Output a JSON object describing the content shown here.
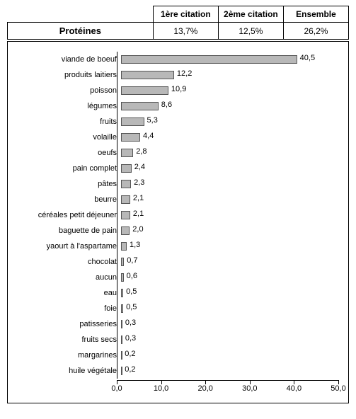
{
  "header": {
    "columns": [
      "1ère citation",
      "2ème citation",
      "Ensemble"
    ],
    "row_label": "Protéines",
    "values": [
      "13,7%",
      "12,5%",
      "26,2%"
    ]
  },
  "chart": {
    "type": "bar-horizontal",
    "xlim": [
      0.0,
      50.0
    ],
    "xtick_step": 10.0,
    "xticks": [
      "0,0",
      "10,0",
      "20,0",
      "30,0",
      "40,0",
      "50,0"
    ],
    "bar_fill": "#b8b8b8",
    "bar_border": "#555555",
    "background": "#ffffff",
    "label_fontsize": 11,
    "value_fontsize": 11,
    "items": [
      {
        "label": "viande de boeuf",
        "value": 40.5,
        "text": "40,5"
      },
      {
        "label": "produits laitiers",
        "value": 12.2,
        "text": "12,2"
      },
      {
        "label": "poisson",
        "value": 10.9,
        "text": "10,9"
      },
      {
        "label": "légumes",
        "value": 8.6,
        "text": "8,6"
      },
      {
        "label": "fruits",
        "value": 5.3,
        "text": "5,3"
      },
      {
        "label": "volaille",
        "value": 4.4,
        "text": "4,4"
      },
      {
        "label": "oeufs",
        "value": 2.8,
        "text": "2,8"
      },
      {
        "label": "pain complet",
        "value": 2.4,
        "text": "2,4"
      },
      {
        "label": "pâtes",
        "value": 2.3,
        "text": "2,3"
      },
      {
        "label": "beurre",
        "value": 2.1,
        "text": "2,1"
      },
      {
        "label": "céréales petit déjeuner",
        "value": 2.1,
        "text": "2,1"
      },
      {
        "label": "baguette de pain",
        "value": 2.0,
        "text": "2,0"
      },
      {
        "label": "yaourt à l'aspartame",
        "value": 1.3,
        "text": "1,3"
      },
      {
        "label": "chocolat",
        "value": 0.7,
        "text": "0,7"
      },
      {
        "label": "aucun",
        "value": 0.6,
        "text": "0,6"
      },
      {
        "label": "eau",
        "value": 0.5,
        "text": "0,5"
      },
      {
        "label": "foie",
        "value": 0.5,
        "text": "0,5"
      },
      {
        "label": "patisseries",
        "value": 0.3,
        "text": "0,3"
      },
      {
        "label": "fruits secs",
        "value": 0.3,
        "text": "0,3"
      },
      {
        "label": "margarines",
        "value": 0.2,
        "text": "0,2"
      },
      {
        "label": "huile végétale",
        "value": 0.2,
        "text": "0,2"
      }
    ]
  }
}
